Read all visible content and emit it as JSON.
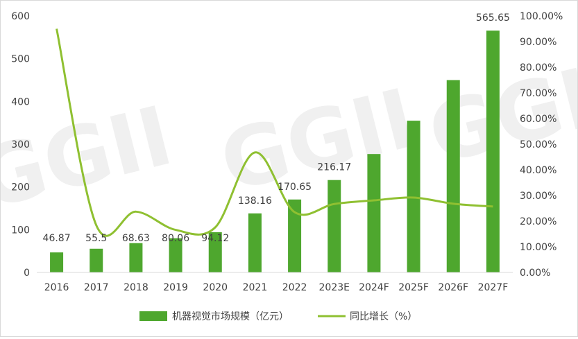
{
  "chart_data": {
    "type": "bar+line",
    "categories": [
      "2016",
      "2017",
      "2018",
      "2019",
      "2020",
      "2021",
      "2022",
      "2023E",
      "2024F",
      "2025F",
      "2026F",
      "2027F"
    ],
    "series": [
      {
        "name": "机器视觉市场规模（亿元）",
        "type": "bar",
        "axis": "left",
        "color": "#4ea72e",
        "values": [
          46.87,
          55.5,
          68.63,
          80.06,
          94.12,
          138.16,
          170.65,
          216.17,
          277,
          355,
          450,
          565.65
        ],
        "labels": [
          "46.87",
          "55.5",
          "68.63",
          "80.06",
          "94.12",
          "138.16",
          "170.65",
          "216.17",
          "",
          "",
          "",
          "565.65"
        ]
      },
      {
        "name": "同比增长（%）",
        "type": "line",
        "axis": "right",
        "color": "#8fc031",
        "values": [
          95.0,
          18.4,
          23.7,
          16.6,
          17.6,
          46.8,
          23.5,
          26.7,
          28.1,
          29.2,
          26.8,
          25.7
        ]
      }
    ],
    "y_left": {
      "range": [
        0,
        600
      ],
      "ticks": [
        "0",
        "100",
        "200",
        "300",
        "400",
        "500",
        "600"
      ]
    },
    "y_right": {
      "range": [
        0,
        100
      ],
      "ticks": [
        "0.00%",
        "10.00%",
        "20.00%",
        "30.00%",
        "40.00%",
        "50.00%",
        "60.00%",
        "70.00%",
        "80.00%",
        "90.00%",
        "100.00%"
      ]
    },
    "grid": false,
    "legend": "bottom",
    "watermark": "GGII"
  }
}
